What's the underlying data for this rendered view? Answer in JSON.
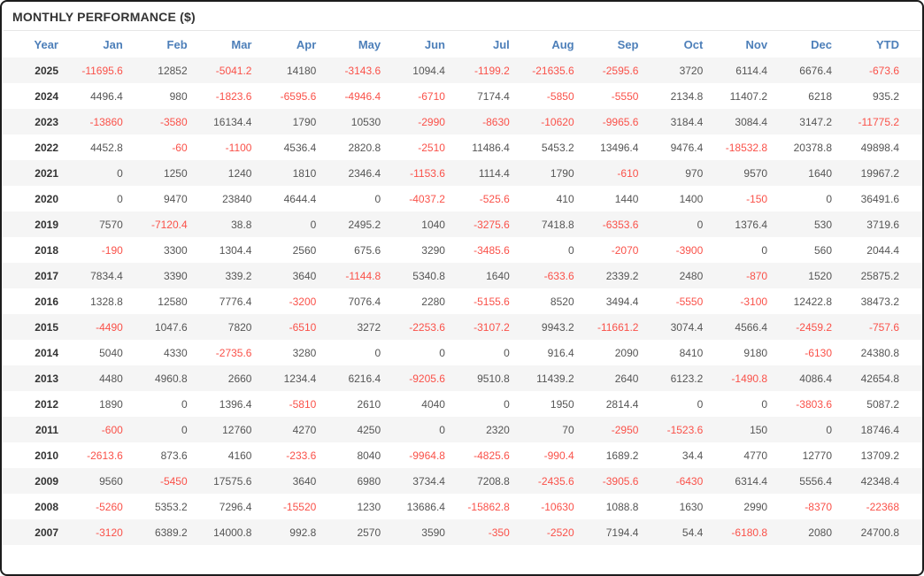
{
  "panel": {
    "title": "MONTHLY PERFORMANCE ($)"
  },
  "colors": {
    "panel_border": "#1c1c1c",
    "title_text": "#333333",
    "column_header_text": "#4d7fb9",
    "year_text": "#333333",
    "positive_value_text": "#555555",
    "negative_value_text": "#fa5149",
    "stripe_row_bg": "#f5f5f5",
    "divider": "#e6e6e6"
  },
  "chart_data": {
    "type": "table",
    "title": "MONTHLY PERFORMANCE ($)",
    "columns": [
      "Year",
      "Jan",
      "Feb",
      "Mar",
      "Apr",
      "May",
      "Jun",
      "Jul",
      "Aug",
      "Sep",
      "Oct",
      "Nov",
      "Dec",
      "YTD"
    ],
    "rows": [
      {
        "year": "2025",
        "values": [
          -11695.6,
          12852,
          -5041.2,
          14180,
          -3143.6,
          1094.4,
          -1199.2,
          -21635.6,
          -2595.6,
          3720,
          6114.4,
          6676.4,
          -673.6
        ]
      },
      {
        "year": "2024",
        "values": [
          4496.4,
          980,
          -1823.6,
          -6595.6,
          -4946.4,
          -6710,
          7174.4,
          -5850,
          -5550,
          2134.8,
          11407.2,
          6218,
          935.2
        ]
      },
      {
        "year": "2023",
        "values": [
          -13860,
          -3580,
          16134.4,
          1790,
          10530,
          -2990,
          -8630,
          -10620,
          -9965.6,
          3184.4,
          3084.4,
          3147.2,
          -11775.2
        ]
      },
      {
        "year": "2022",
        "values": [
          4452.8,
          -60,
          -1100,
          4536.4,
          2820.8,
          -2510,
          11486.4,
          5453.2,
          13496.4,
          9476.4,
          -18532.8,
          20378.8,
          49898.4
        ]
      },
      {
        "year": "2021",
        "values": [
          0,
          1250,
          1240,
          1810,
          2346.4,
          -1153.6,
          1114.4,
          1790,
          -610,
          970,
          9570,
          1640,
          19967.2
        ]
      },
      {
        "year": "2020",
        "values": [
          0,
          9470,
          23840,
          4644.4,
          0,
          -4037.2,
          -525.6,
          410,
          1440,
          1400,
          -150,
          0,
          36491.6
        ]
      },
      {
        "year": "2019",
        "values": [
          7570,
          -7120.4,
          38.8,
          0,
          2495.2,
          1040,
          -3275.6,
          7418.8,
          -6353.6,
          0,
          1376.4,
          530,
          3719.6
        ]
      },
      {
        "year": "2018",
        "values": [
          -190,
          3300,
          1304.4,
          2560,
          675.6,
          3290,
          -3485.6,
          0,
          -2070,
          -3900,
          0,
          560,
          2044.4
        ]
      },
      {
        "year": "2017",
        "values": [
          7834.4,
          3390,
          339.2,
          3640,
          -1144.8,
          5340.8,
          1640,
          -633.6,
          2339.2,
          2480,
          -870,
          1520,
          25875.2
        ]
      },
      {
        "year": "2016",
        "values": [
          1328.8,
          12580,
          7776.4,
          -3200,
          7076.4,
          2280,
          -5155.6,
          8520,
          3494.4,
          -5550,
          -3100,
          12422.8,
          38473.2
        ]
      },
      {
        "year": "2015",
        "values": [
          -4490,
          1047.6,
          7820,
          -6510,
          3272,
          -2253.6,
          -3107.2,
          9943.2,
          -11661.2,
          3074.4,
          4566.4,
          -2459.2,
          -757.6
        ]
      },
      {
        "year": "2014",
        "values": [
          5040,
          4330,
          -2735.6,
          3280,
          0,
          0,
          0,
          916.4,
          2090,
          8410,
          9180,
          -6130,
          24380.8
        ]
      },
      {
        "year": "2013",
        "values": [
          4480,
          4960.8,
          2660,
          1234.4,
          6216.4,
          -9205.6,
          9510.8,
          11439.2,
          2640,
          6123.2,
          -1490.8,
          4086.4,
          42654.8
        ]
      },
      {
        "year": "2012",
        "values": [
          1890,
          0,
          1396.4,
          -5810,
          2610,
          4040,
          0,
          1950,
          2814.4,
          0,
          0,
          -3803.6,
          5087.2
        ]
      },
      {
        "year": "2011",
        "values": [
          -600,
          0,
          12760,
          4270,
          4250,
          0,
          2320,
          70,
          -2950,
          -1523.6,
          150,
          0,
          18746.4
        ]
      },
      {
        "year": "2010",
        "values": [
          -2613.6,
          873.6,
          4160,
          -233.6,
          8040,
          -9964.8,
          -4825.6,
          -990.4,
          1689.2,
          34.4,
          4770,
          12770,
          13709.2
        ]
      },
      {
        "year": "2009",
        "values": [
          9560,
          -5450,
          17575.6,
          3640,
          6980,
          3734.4,
          7208.8,
          -2435.6,
          -3905.6,
          -6430,
          6314.4,
          5556.4,
          42348.4
        ]
      },
      {
        "year": "2008",
        "values": [
          -5260,
          5353.2,
          7296.4,
          -15520,
          1230,
          13686.4,
          -15862.8,
          -10630,
          1088.8,
          1630,
          2990,
          -8370,
          -22368
        ]
      },
      {
        "year": "2007",
        "values": [
          -3120,
          6389.2,
          14000.8,
          992.8,
          2570,
          3590,
          -350,
          -2520,
          7194.4,
          54.4,
          -6180.8,
          2080,
          24700.8
        ]
      }
    ]
  }
}
